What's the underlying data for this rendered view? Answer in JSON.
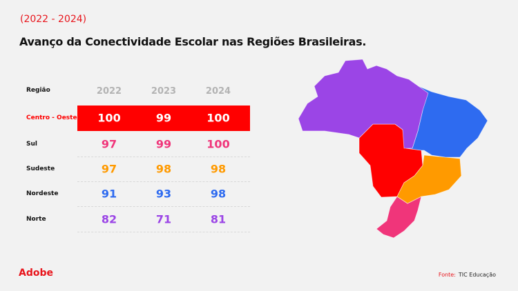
{
  "subtitle": "(2022 - 2024)",
  "title": "Avanço da Conectividade Escolar nas Regiões Brasileiras.",
  "chart_data": {
    "type": "table",
    "row_header": "Região",
    "columns": [
      "2022",
      "2023",
      "2024"
    ],
    "rows": [
      {
        "region": "Centro - Oeste",
        "values": [
          100,
          99,
          100
        ],
        "color": "#ff0000",
        "highlighted": true
      },
      {
        "region": "Sul",
        "values": [
          97,
          99,
          100
        ],
        "color": "#f0357a"
      },
      {
        "region": "Sudeste",
        "values": [
          97,
          98,
          98
        ],
        "color": "#ff9a00"
      },
      {
        "region": "Nordeste",
        "values": [
          91,
          93,
          98
        ],
        "color": "#2e6bf0"
      },
      {
        "region": "Norte",
        "values": [
          82,
          71,
          81
        ],
        "color": "#9b45e6"
      }
    ]
  },
  "footer": {
    "logo": "Adobe",
    "source_label": "Fonte:",
    "source": "TIC Educação"
  }
}
